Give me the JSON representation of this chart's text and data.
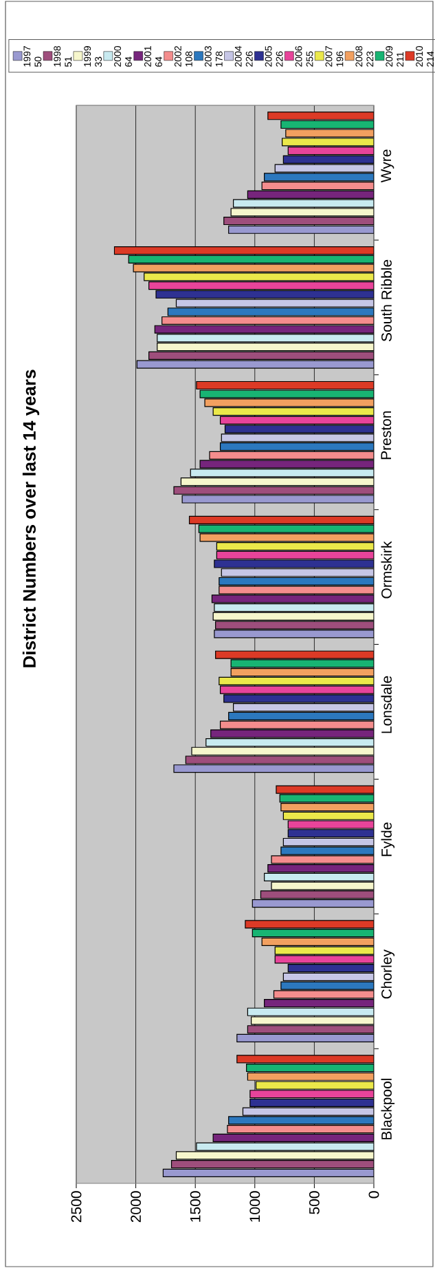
{
  "chart_data": {
    "type": "bar",
    "orientation": "horizontal",
    "title": "District Numbers over last 14 years",
    "categories": [
      "Wyre",
      "South Ribble",
      "Preston",
      "Ormskirk",
      "Lonsdale",
      "Fylde",
      "Chorley",
      "Blackpool"
    ],
    "series": [
      {
        "name": "1997 50",
        "color": "#9999d0",
        "values": [
          1220,
          1990,
          1610,
          1340,
          1680,
          1020,
          1150,
          1770
        ]
      },
      {
        "name": "1998 51",
        "color": "#9e4e7c",
        "values": [
          1260,
          1890,
          1680,
          1330,
          1580,
          950,
          1060,
          1700
        ]
      },
      {
        "name": "1999 33",
        "color": "#f6f6cc",
        "values": [
          1200,
          1820,
          1620,
          1350,
          1530,
          860,
          1030,
          1660
        ]
      },
      {
        "name": "2000 64",
        "color": "#c8eaf0",
        "values": [
          1180,
          1820,
          1540,
          1340,
          1410,
          920,
          1060,
          1490
        ]
      },
      {
        "name": "2001 64",
        "color": "#76257c",
        "values": [
          1060,
          1840,
          1460,
          1360,
          1370,
          890,
          920,
          1350
        ]
      },
      {
        "name": "2002 108",
        "color": "#f48d8d",
        "values": [
          940,
          1780,
          1380,
          1300,
          1290,
          860,
          840,
          1230
        ]
      },
      {
        "name": "2003 178",
        "color": "#2c78be",
        "values": [
          920,
          1730,
          1290,
          1300,
          1220,
          780,
          780,
          1220
        ]
      },
      {
        "name": "2004 226",
        "color": "#c6c6e6",
        "values": [
          830,
          1660,
          1280,
          1280,
          1180,
          760,
          760,
          1100
        ]
      },
      {
        "name": "2005 226",
        "color": "#2e3192",
        "values": [
          760,
          1830,
          1250,
          1340,
          1260,
          720,
          720,
          1040
        ]
      },
      {
        "name": "2006 255",
        "color": "#e8449a",
        "values": [
          720,
          1890,
          1290,
          1320,
          1290,
          720,
          830,
          1040
        ]
      },
      {
        "name": "2007 196",
        "color": "#ebe84a",
        "values": [
          770,
          1930,
          1350,
          1320,
          1300,
          760,
          830,
          990
        ]
      },
      {
        "name": "2008 223",
        "color": "#f2a060",
        "values": [
          740,
          2020,
          1420,
          1460,
          1200,
          780,
          940,
          1060
        ]
      },
      {
        "name": "2009 211",
        "color": "#18b473",
        "values": [
          780,
          2060,
          1460,
          1470,
          1200,
          790,
          1020,
          1070
        ]
      },
      {
        "name": "2010 214",
        "color": "#dc3a26",
        "values": [
          890,
          2180,
          1490,
          1550,
          1330,
          820,
          1080,
          1150
        ]
      }
    ],
    "xlim": [
      2500,
      0
    ],
    "xticks": [
      0,
      500,
      1000,
      1500,
      2000,
      2500
    ],
    "grid": "x",
    "legend": "top"
  }
}
